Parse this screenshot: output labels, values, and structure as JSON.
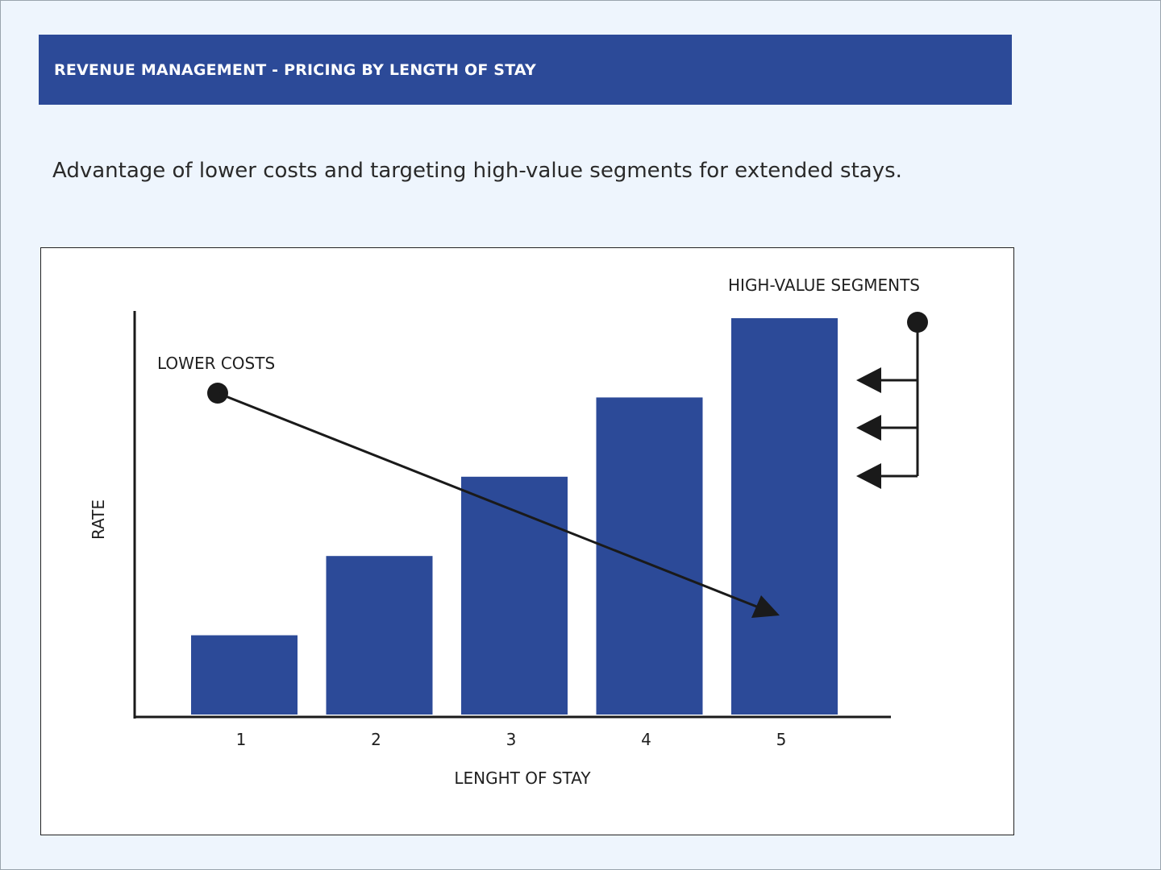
{
  "header": {
    "title": "REVENUE MANAGEMENT - PRICING BY LENGTH OF STAY"
  },
  "subtitle": "Advantage of lower costs and targeting high-value segments for extended stays.",
  "chart_data": {
    "type": "bar",
    "title": "",
    "xlabel": "LENGHT OF STAY",
    "ylabel": "RATE",
    "categories": [
      "1",
      "2",
      "3",
      "4",
      "5"
    ],
    "values": [
      1,
      2,
      3,
      4,
      5
    ],
    "ylim": [
      0,
      5
    ],
    "grid": false,
    "bar_color": "#2c4a98",
    "annotations": {
      "lower_costs": "LOWER COSTS",
      "high_value_segments": "HIGH-VALUE SEGMENTS"
    }
  },
  "colors": {
    "header_bg": "#2c4a98",
    "page_bg": "#eef5fd",
    "ink": "#1a1a1a"
  }
}
